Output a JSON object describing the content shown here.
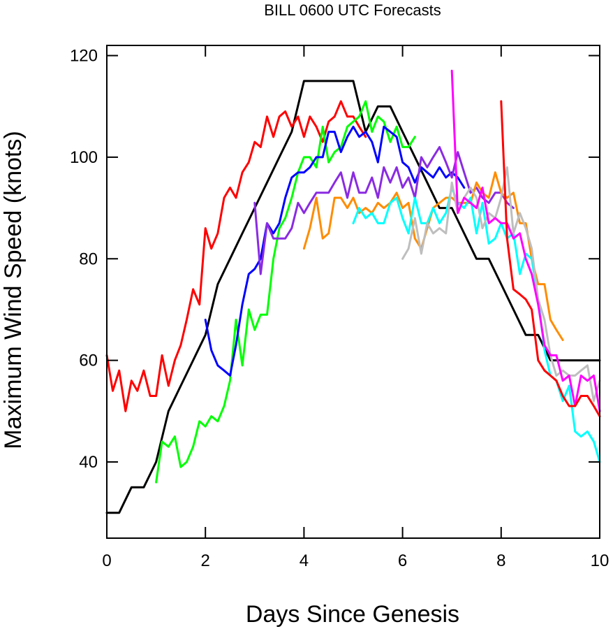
{
  "chart_data": {
    "type": "line",
    "title": "BILL 0600 UTC Forecasts",
    "xlabel": "Days Since Genesis",
    "ylabel": "Maximum Wind Speed (knots)",
    "xlim": [
      0,
      10
    ],
    "ylim": [
      25,
      122
    ],
    "x_ticks": [
      0,
      2,
      4,
      6,
      8,
      10
    ],
    "y_ticks": [
      40,
      60,
      80,
      100,
      120
    ],
    "grid": false,
    "legend": "none",
    "series": [
      {
        "color": "#000000",
        "x": [
          0,
          0.25,
          0.5,
          0.75,
          1,
          1.25,
          1.5,
          1.75,
          2,
          2.25,
          2.5,
          2.75,
          3,
          3.25,
          3.5,
          3.75,
          4,
          4.25,
          4.5,
          4.75,
          5,
          5.25,
          5.5,
          5.75,
          6,
          6.25,
          6.5,
          6.75,
          7,
          7.25,
          7.5,
          7.75,
          8,
          8.25,
          8.5,
          8.75,
          9,
          9.25,
          9.5,
          9.75,
          10
        ],
        "y": [
          30,
          30,
          35,
          35,
          40,
          50,
          55,
          60,
          65,
          75,
          80,
          85,
          90,
          95,
          100,
          105,
          115,
          115,
          115,
          115,
          115,
          105,
          110,
          110,
          105,
          100,
          95,
          90,
          90,
          85,
          80,
          80,
          75,
          70,
          65,
          65,
          60,
          60,
          60,
          60,
          60
        ]
      },
      {
        "color": "#ff0000",
        "x": [
          0,
          0.12,
          0.25,
          0.38,
          0.5,
          0.62,
          0.75,
          0.88,
          1,
          1.12,
          1.25,
          1.38,
          1.5,
          1.62,
          1.75,
          1.88,
          2,
          2.12,
          2.25,
          2.38,
          2.5,
          2.62,
          2.75,
          2.88,
          3,
          3.12,
          3.25,
          3.38,
          3.5,
          3.62,
          3.75,
          3.88,
          4,
          4.12,
          4.25,
          4.38,
          4.5,
          4.62,
          4.75,
          4.88,
          5,
          5.12,
          5.25
        ],
        "y": [
          61,
          54,
          58,
          50,
          56,
          54,
          58,
          53,
          53,
          61,
          55,
          60,
          63,
          68,
          74,
          71,
          86,
          82,
          85,
          92,
          94,
          92,
          97,
          99,
          103,
          102,
          108,
          104,
          108,
          109,
          106,
          108,
          104,
          108,
          106,
          103,
          107,
          108,
          111,
          108,
          108,
          106,
          104
        ]
      },
      {
        "color": "#00ff00",
        "x": [
          1,
          1.12,
          1.25,
          1.38,
          1.5,
          1.62,
          1.75,
          1.88,
          2,
          2.12,
          2.25,
          2.38,
          2.5,
          2.62,
          2.75,
          2.88,
          3,
          3.12,
          3.25,
          3.38,
          3.5,
          3.62,
          3.75,
          3.88,
          4,
          4.12,
          4.25,
          4.38,
          4.5,
          4.62,
          4.75,
          4.88,
          5,
          5.12,
          5.25,
          5.38,
          5.5,
          5.62,
          5.75,
          5.88,
          6,
          6.12,
          6.25
        ],
        "y": [
          36,
          44,
          43,
          45,
          39,
          40,
          43,
          48,
          47,
          49,
          48,
          51,
          56,
          68,
          59,
          70,
          66,
          69,
          69,
          80,
          86,
          88,
          92,
          97,
          100,
          100,
          98,
          106,
          99,
          101,
          102,
          106,
          107,
          108,
          111,
          105,
          108,
          107,
          103,
          106,
          102,
          102,
          104
        ]
      },
      {
        "color": "#0000ff",
        "x": [
          2,
          2.12,
          2.25,
          2.38,
          2.5,
          2.62,
          2.75,
          2.88,
          3,
          3.12,
          3.25,
          3.38,
          3.5,
          3.62,
          3.75,
          3.88,
          4,
          4.12,
          4.25,
          4.38,
          4.5,
          4.62,
          4.75,
          4.88,
          5,
          5.12,
          5.25,
          5.38,
          5.5,
          5.62,
          5.75,
          5.88,
          6,
          6.12,
          6.25,
          6.38,
          6.5,
          6.62,
          6.75,
          6.88,
          7,
          7.12,
          7.25
        ],
        "y": [
          68,
          62,
          59,
          58,
          57,
          63,
          71,
          77,
          78,
          80,
          87,
          85,
          87,
          92,
          96,
          97,
          97,
          98,
          100,
          100,
          105,
          105,
          101,
          104,
          106,
          104,
          105,
          103,
          99,
          106,
          105,
          104,
          99,
          98,
          95,
          98,
          97,
          96,
          98,
          96,
          97,
          96,
          94
        ]
      },
      {
        "color": "#8a2be2",
        "x": [
          3,
          3.12,
          3.25,
          3.38,
          3.5,
          3.62,
          3.75,
          3.88,
          4,
          4.12,
          4.25,
          4.38,
          4.5,
          4.62,
          4.75,
          4.88,
          5,
          5.12,
          5.25,
          5.38,
          5.5,
          5.62,
          5.75,
          5.88,
          6,
          6.12,
          6.25,
          6.38,
          6.5,
          6.62,
          6.75,
          6.88,
          7,
          7.12,
          7.25,
          7.38,
          7.5,
          7.62,
          7.75,
          7.88,
          8,
          8.12,
          8.25
        ],
        "y": [
          91,
          77,
          87,
          84,
          84,
          84,
          86,
          91,
          89,
          91,
          93,
          93,
          93,
          95,
          97,
          92,
          97,
          93,
          93,
          96,
          92,
          98,
          95,
          98,
          94,
          96,
          92,
          100,
          98,
          100,
          102,
          99,
          96,
          101,
          97,
          93,
          94,
          92,
          91,
          93,
          93,
          91,
          90
        ]
      },
      {
        "color": "#ff8c00",
        "x": [
          4,
          4.12,
          4.25,
          4.38,
          4.5,
          4.62,
          4.75,
          4.88,
          5,
          5.12,
          5.25,
          5.38,
          5.5,
          5.62,
          5.75,
          5.88,
          6,
          6.12,
          6.25,
          6.38,
          6.5,
          6.62,
          6.75,
          6.88,
          7,
          7.12,
          7.25,
          7.38,
          7.5,
          7.62,
          7.75,
          7.88,
          8,
          8.12,
          8.25,
          8.38,
          8.5,
          8.62,
          8.75,
          8.88,
          9,
          9.12,
          9.25
        ],
        "y": [
          82,
          86,
          92,
          84,
          85,
          92,
          92,
          90,
          92,
          89,
          90,
          89,
          91,
          90,
          91,
          93,
          90,
          91,
          84,
          82,
          86,
          90,
          91,
          92,
          92,
          91,
          91,
          91,
          95,
          93,
          92,
          97,
          93,
          92,
          93,
          87,
          87,
          80,
          75,
          75,
          68,
          66,
          64
        ]
      },
      {
        "color": "#00ffff",
        "x": [
          5,
          5.12,
          5.25,
          5.38,
          5.5,
          5.62,
          5.75,
          5.88,
          6,
          6.12,
          6.25,
          6.38,
          6.5,
          6.62,
          6.75,
          6.88,
          7,
          7.12,
          7.25,
          7.38,
          7.5,
          7.62,
          7.75,
          7.88,
          8,
          8.12,
          8.25,
          8.38,
          8.5,
          8.62,
          8.75,
          8.88,
          9,
          9.12,
          9.25,
          9.38,
          9.5,
          9.62,
          9.75,
          9.88,
          10
        ],
        "y": [
          87,
          90,
          88,
          89,
          87,
          87,
          91,
          92,
          88,
          85,
          92,
          87,
          87,
          90,
          87,
          89,
          94,
          91,
          90,
          92,
          85,
          91,
          83,
          84,
          87,
          84,
          85,
          77,
          81,
          80,
          72,
          62,
          57,
          56,
          52,
          55,
          46,
          45,
          46,
          44,
          40
        ]
      },
      {
        "color": "#bebebe",
        "x": [
          6,
          6.12,
          6.25,
          6.38,
          6.5,
          6.62,
          6.75,
          6.88,
          7,
          7.12,
          7.25,
          7.38,
          7.5,
          7.62,
          7.75,
          7.88,
          8,
          8.12,
          8.25,
          8.38,
          8.5,
          8.62,
          8.75,
          8.88,
          9,
          9.12,
          9.25,
          9.38,
          9.5,
          9.62,
          9.75,
          9.88,
          10
        ],
        "y": [
          80,
          82,
          88,
          81,
          87,
          85,
          86,
          85,
          95,
          89,
          92,
          94,
          92,
          86,
          89,
          88,
          92,
          98,
          85,
          89,
          86,
          82,
          72,
          68,
          61,
          57,
          58,
          57,
          57,
          58,
          59,
          52,
          56
        ]
      },
      {
        "color": "#ff00ff",
        "x": [
          7,
          7.12,
          7.25,
          7.38,
          7.5,
          7.62,
          7.75,
          7.88,
          8,
          8.12,
          8.25,
          8.38,
          8.5,
          8.62,
          8.75,
          8.88,
          9,
          9.12,
          9.25,
          9.38,
          9.5,
          9.62,
          9.75,
          9.88,
          10
        ],
        "y": [
          117,
          89,
          92,
          91,
          90,
          94,
          87,
          88,
          87,
          87,
          84,
          85,
          80,
          77,
          71,
          63,
          61,
          61,
          56,
          57,
          51,
          57,
          56,
          57,
          50
        ]
      },
      {
        "color": "#ff0000",
        "x": [
          8,
          8.12,
          8.25,
          8.38,
          8.5,
          8.62,
          8.75,
          8.88,
          9,
          9.12,
          9.25,
          9.38,
          9.5,
          9.62,
          9.75,
          9.88,
          10
        ],
        "y": [
          111,
          84,
          74,
          73,
          72,
          70,
          60,
          58,
          57,
          56,
          53,
          51,
          51,
          53,
          53,
          51,
          49
        ]
      }
    ]
  }
}
